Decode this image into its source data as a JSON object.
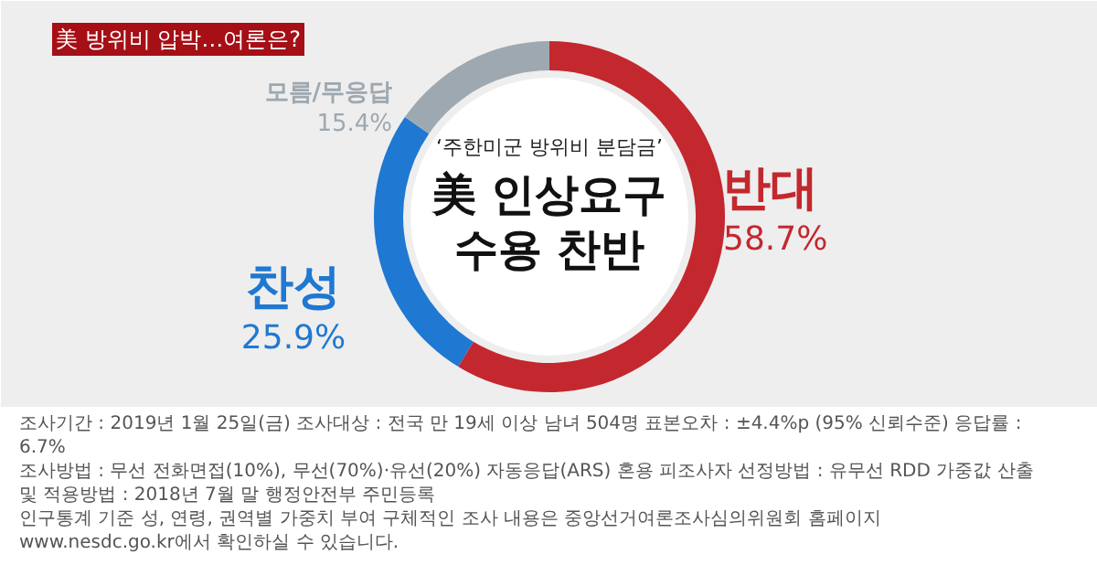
{
  "chart_data": {
    "type": "donut",
    "title": "美 방위비 압박…여론은?",
    "subtitle": "‘주한미군 방위비 분담금’",
    "categories": [
      "반대",
      "찬성",
      "모름/무응답"
    ],
    "values": [
      58.7,
      25.9,
      15.4
    ],
    "colors": [
      "#c3282e",
      "#1f78d2",
      "#9ea8b0"
    ],
    "value_labels": [
      "58.7%",
      "25.9%",
      "15.4%"
    ],
    "annotations": [
      "美 인상요구",
      "수용 찬반",
      "조사기간 : 2019년 1월 25일(금)  조사대상 : 전국 만 19세 이상 남녀 504명  표본오차 : ±4.4%p (95% 신뢰수준)  응답률 : 6.7%",
      "조사방법 : 무선 전화면접(10%), 무선(70%)·유선(20%) 자동응답(ARS) 혼용  피조사자 선정방법 : 유무선 RDD  가중값 산출 및 적용방법 : 2018년 7월 말 행정안전부 주민등록",
      "인구통계 기준 성, 연령, 권역별 가중치 부여  구체적인 조사 내용은 중앙선거여론조사심의위원회 홈페이지 www.nesdc.go.kr에서 확인하실 수 있습니다."
    ]
  }
}
